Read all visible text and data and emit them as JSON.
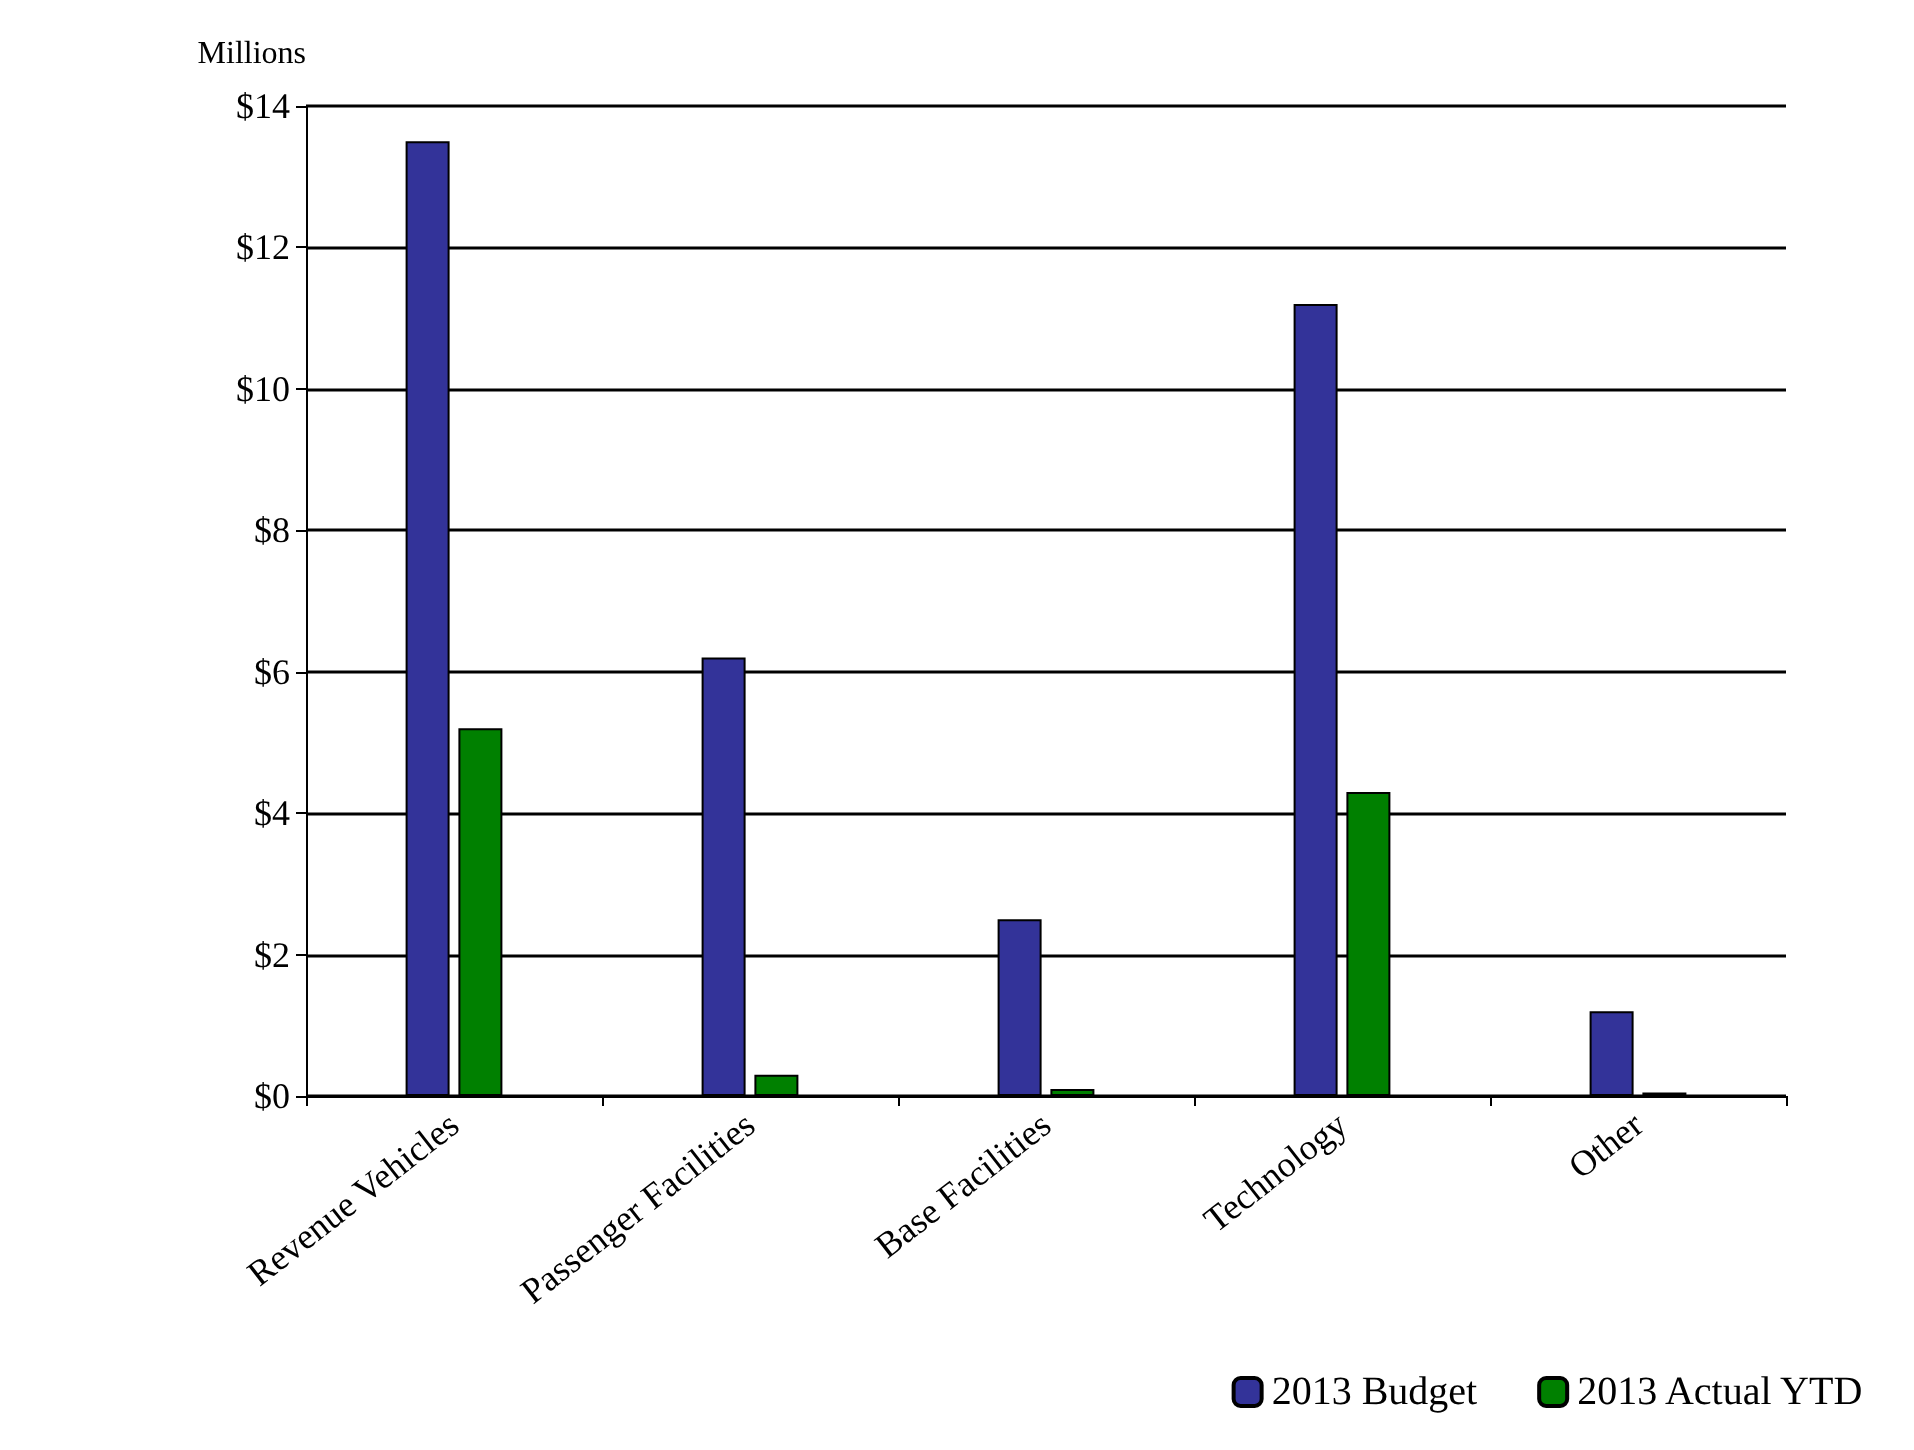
{
  "chart_data": {
    "type": "bar",
    "ylabel": "Millions",
    "categories": [
      "Revenue Vehicles",
      "Passenger Facilities",
      "Base Facilities",
      "Technology",
      "Other"
    ],
    "series": [
      {
        "name": "2013 Budget",
        "color": "#333399",
        "values": [
          13.5,
          6.2,
          2.5,
          11.2,
          1.2
        ]
      },
      {
        "name": "2013 Actual YTD",
        "color": "#008000",
        "values": [
          5.2,
          0.3,
          0.1,
          4.3,
          0.05
        ]
      }
    ],
    "ylim": [
      0,
      14
    ],
    "yticks": [
      {
        "value": 0,
        "label": "$0"
      },
      {
        "value": 2,
        "label": "$2"
      },
      {
        "value": 4,
        "label": "$4"
      },
      {
        "value": 6,
        "label": "$6"
      },
      {
        "value": 8,
        "label": "$8"
      },
      {
        "value": 10,
        "label": "$10"
      },
      {
        "value": 12,
        "label": "$12"
      },
      {
        "value": 14,
        "label": "$14"
      }
    ],
    "grid": "y",
    "legend": "bottom right"
  }
}
